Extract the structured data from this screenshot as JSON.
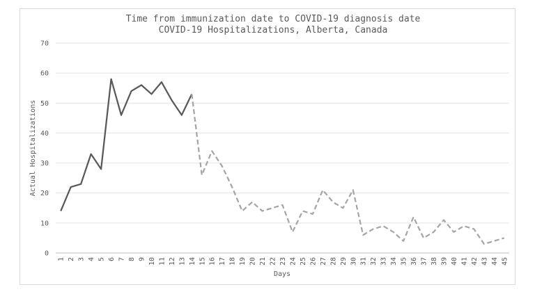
{
  "chart_data": {
    "type": "line",
    "title": "Time from immunization date to COVID-19 diagnosis date",
    "subtitle": "COVID-19 Hospitalizations, Alberta, Canada",
    "xlabel": "Days",
    "ylabel": "Actual Hospitalizations",
    "ylim": [
      0,
      70
    ],
    "yticks": [
      0,
      10,
      20,
      30,
      40,
      50,
      60,
      70
    ],
    "grid": true,
    "x": [
      1,
      2,
      3,
      4,
      5,
      6,
      7,
      8,
      9,
      10,
      11,
      12,
      13,
      14,
      15,
      16,
      17,
      18,
      19,
      20,
      21,
      22,
      23,
      24,
      25,
      26,
      27,
      28,
      29,
      30,
      31,
      32,
      33,
      34,
      35,
      36,
      37,
      38,
      39,
      40,
      41,
      42,
      43,
      44,
      45
    ],
    "series": [
      {
        "style": "solid",
        "color": "#595959",
        "x": [
          1,
          2,
          3,
          4,
          5,
          6,
          7,
          8,
          9,
          10,
          11,
          12,
          13,
          14
        ],
        "values": [
          14,
          22,
          23,
          33,
          28,
          58,
          46,
          54,
          56,
          53,
          57,
          51,
          46,
          53
        ]
      },
      {
        "style": "dashed",
        "color": "#a6a6a6",
        "x": [
          14,
          15,
          16,
          17,
          18,
          19,
          20,
          21,
          22,
          23,
          24,
          25,
          26,
          27,
          28,
          29,
          30,
          31,
          32,
          33,
          34,
          35,
          36,
          37,
          38,
          39,
          40,
          41,
          42,
          43,
          44,
          45
        ],
        "values": [
          53,
          26,
          34,
          29,
          22,
          14,
          17,
          14,
          15,
          16,
          7,
          14,
          13,
          21,
          17,
          15,
          21,
          6,
          8,
          9,
          7,
          4,
          12,
          5,
          7,
          11,
          7,
          9,
          8,
          3,
          4,
          5
        ]
      }
    ]
  }
}
